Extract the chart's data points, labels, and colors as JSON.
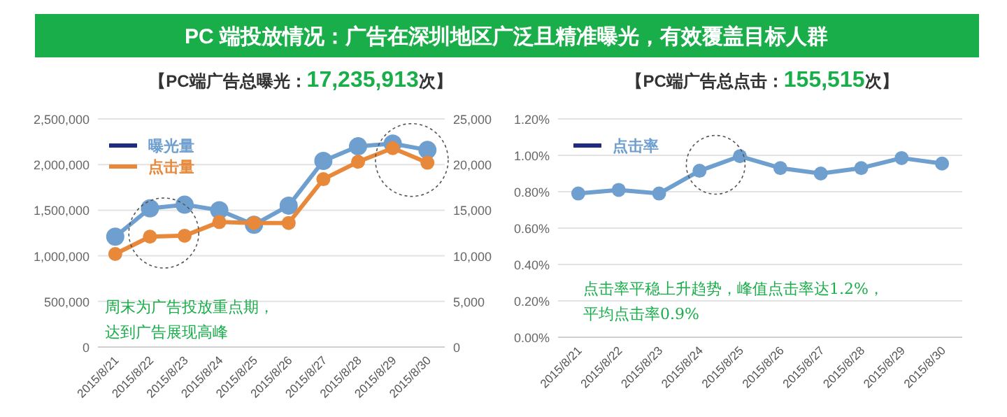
{
  "chart_data": [
    {
      "type": "other",
      "title": "PC 端投放情况：广告在深圳地区广泛且精准曝光，有效覆盖目标人群"
    },
    {
      "type": "line",
      "title": "【PC端广告总曝光：17,235,913次】",
      "categories": [
        "2015/8/21",
        "2015/8/22",
        "2015/8/23",
        "2015/8/24",
        "2015/8/25",
        "2015/8/26",
        "2015/8/27",
        "2015/8/28",
        "2015/8/29",
        "2015/8/30"
      ],
      "series": [
        {
          "name": "曝光量",
          "color": "#6e9fcf",
          "values": [
            1210000,
            1520000,
            1560000,
            1500000,
            1340000,
            1550000,
            2040000,
            2200000,
            2230000,
            2160000
          ]
        },
        {
          "name": "点击量",
          "color": "#e8883a",
          "axis": "y2",
          "values": [
            10200,
            12100,
            12200,
            13700,
            13600,
            13600,
            18400,
            20300,
            21800,
            20200
          ]
        }
      ],
      "ylim": [
        0,
        2500000
      ],
      "yticks": [
        {
          "value": 0,
          "label": "0"
        },
        {
          "value": 500000,
          "label": "500,000"
        },
        {
          "value": 1000000,
          "label": "1,000,000"
        },
        {
          "value": 1500000,
          "label": "1,500,000"
        },
        {
          "value": 2000000,
          "label": "2,000,000"
        },
        {
          "value": 2500000,
          "label": "2,500,000"
        }
      ],
      "y2lim": [
        0,
        25000
      ],
      "y2ticks": [
        {
          "value": 0,
          "label": "0"
        },
        {
          "value": 5000,
          "label": "5,000"
        },
        {
          "value": 10000,
          "label": "10,000"
        },
        {
          "value": 15000,
          "label": "15,000"
        },
        {
          "value": 20000,
          "label": "20,000"
        },
        {
          "value": 25000,
          "label": "25,000"
        }
      ],
      "grid": "y",
      "legend": "top left",
      "marker": "circle",
      "line_style": "solid",
      "annotations": [
        "周末为广告投放重点期，",
        "达到广告展现高峰"
      ]
    },
    {
      "type": "line",
      "title": "【PC端广告总点击：155,515次】",
      "categories": [
        "2015/8/21",
        "2015/8/22",
        "2015/8/23",
        "2015/8/24",
        "2015/8/25",
        "2015/8/26",
        "2015/8/27",
        "2015/8/28",
        "2015/8/29",
        "2015/8/30"
      ],
      "series": [
        {
          "name": "点击率",
          "color": "#6e9fcf",
          "values": [
            0.79,
            0.81,
            0.79,
            0.915,
            0.995,
            0.93,
            0.9,
            0.93,
            0.985,
            0.955
          ]
        }
      ],
      "ylim": [
        0,
        1.2
      ],
      "yticks": [
        {
          "value": 0,
          "label": "0.00%"
        },
        {
          "value": 0.2,
          "label": "0.20%"
        },
        {
          "value": 0.4,
          "label": "0.40%"
        },
        {
          "value": 0.6,
          "label": "0.60%"
        },
        {
          "value": 0.8,
          "label": "0.80%"
        },
        {
          "value": 1.0,
          "label": "1.00%"
        },
        {
          "value": 1.2,
          "label": "1.20%"
        }
      ],
      "grid": "y",
      "legend": "top left",
      "marker": "circle",
      "line_style": "solid",
      "annotations": [
        "点击率平稳上升趋势，峰值点击率达1.2%，",
        "平均点击率0.9%"
      ]
    }
  ]
}
